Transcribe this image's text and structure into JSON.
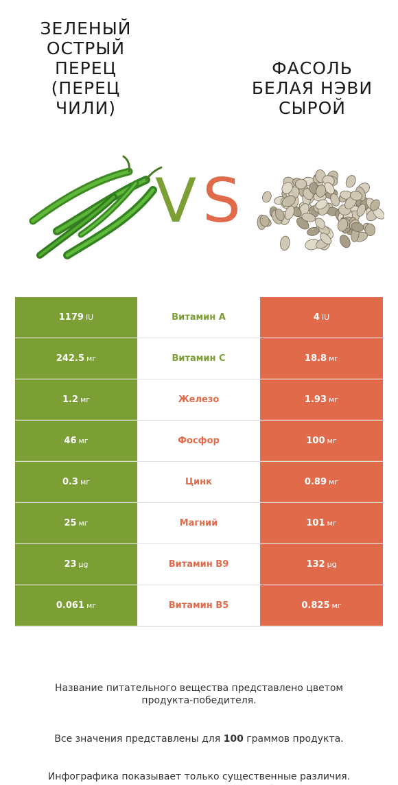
{
  "left_product": {
    "title": "ЗЕЛЕНЫЙ\nОСТРЫЙ\nПЕРЕЦ\n(ПЕРЕЦ\nЧИЛИ)",
    "color": "#7b9e35",
    "image_icon": "green-chili-pepper-icon"
  },
  "right_product": {
    "title": "ФАСОЛЬ\nБЕЛАЯ НЭВИ\nСЫРОЙ",
    "color": "#e16a4a",
    "image_icon": "navy-beans-icon"
  },
  "vs": {
    "v": "V",
    "s": "S"
  },
  "rows": [
    {
      "left_value": "1179",
      "left_unit": "IU",
      "nutrient": "Витамин A",
      "right_value": "4",
      "right_unit": "IU",
      "winner": "left"
    },
    {
      "left_value": "242.5",
      "left_unit": "мг",
      "nutrient": "Витамин C",
      "right_value": "18.8",
      "right_unit": "мг",
      "winner": "left"
    },
    {
      "left_value": "1.2",
      "left_unit": "мг",
      "nutrient": "Железо",
      "right_value": "1.93",
      "right_unit": "мг",
      "winner": "right"
    },
    {
      "left_value": "46",
      "left_unit": "мг",
      "nutrient": "Фосфор",
      "right_value": "100",
      "right_unit": "мг",
      "winner": "right"
    },
    {
      "left_value": "0.3",
      "left_unit": "мг",
      "nutrient": "Цинк",
      "right_value": "0.89",
      "right_unit": "мг",
      "winner": "right"
    },
    {
      "left_value": "25",
      "left_unit": "мг",
      "nutrient": "Магний",
      "right_value": "101",
      "right_unit": "мг",
      "winner": "right"
    },
    {
      "left_value": "23",
      "left_unit": "µg",
      "nutrient": "Витамин B9",
      "right_value": "132",
      "right_unit": "µg",
      "winner": "right"
    },
    {
      "left_value": "0.061",
      "left_unit": "мг",
      "nutrient": "Витамин B5",
      "right_value": "0.825",
      "right_unit": "мг",
      "winner": "right"
    }
  ],
  "footnote": {
    "line1": "Название питательного вещества представлено цветом\nпродукта-победителя.",
    "line2_pre": "Все значения представлены для ",
    "line2_bold": "100",
    "line2_post": " граммов продукта.",
    "line3": "Инфографика показывает только существенные различия.\nОсновным источником информации является база министерства\nсельского хозяйства США."
  }
}
